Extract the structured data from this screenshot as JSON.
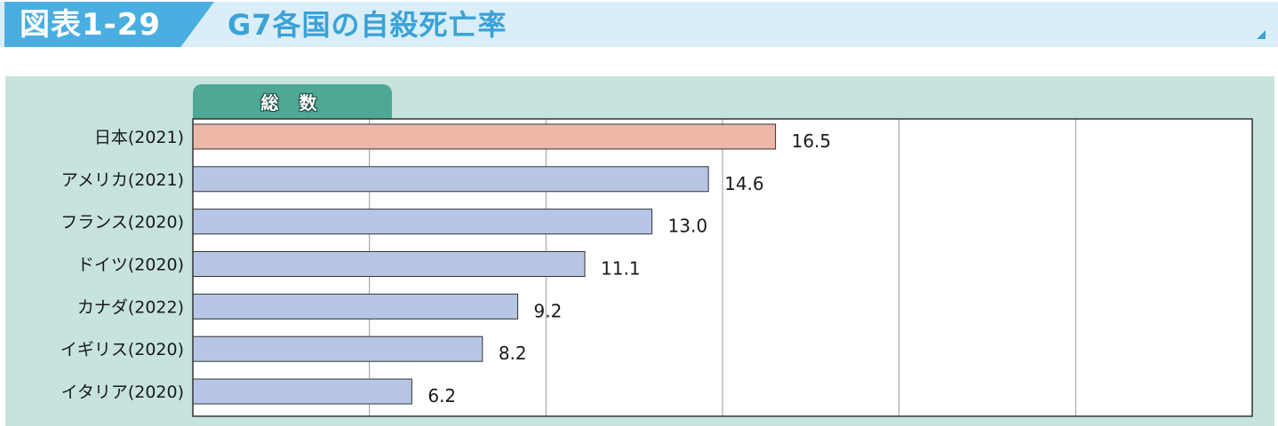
{
  "header": {
    "figure_number": "図表1-29",
    "title": "G7各国の自殺死亡率"
  },
  "chart_data": {
    "type": "bar",
    "orientation": "horizontal",
    "title": "G7各国の自殺死亡率",
    "series_tab": "総 数",
    "categories": [
      "日本(2021)",
      "アメリカ(2021)",
      "フランス(2020)",
      "ドイツ(2020)",
      "カナダ(2022)",
      "イギリス(2020)",
      "イタリア(2020)"
    ],
    "values": [
      16.5,
      14.6,
      13.0,
      11.1,
      9.2,
      8.2,
      6.2
    ],
    "value_labels": [
      "16.5",
      "14.6",
      "13.0",
      "11.1",
      "9.2",
      "8.2",
      "6.2"
    ],
    "bar_colors": [
      "#efb7a8",
      "#b8c6e6",
      "#b8c6e6",
      "#b8c6e6",
      "#b8c6e6",
      "#b8c6e6",
      "#b8c6e6"
    ],
    "xlim": [
      0,
      30
    ],
    "grid": true
  },
  "colors": {
    "header_band": "#daeef8",
    "figure_tab": "#4aaee0",
    "title_text": "#3aa2d8",
    "panel_bg": "#c7e3de",
    "series_tab": "#4ea894",
    "highlight_bar": "#efb7a8",
    "default_bar": "#b8c6e6"
  }
}
